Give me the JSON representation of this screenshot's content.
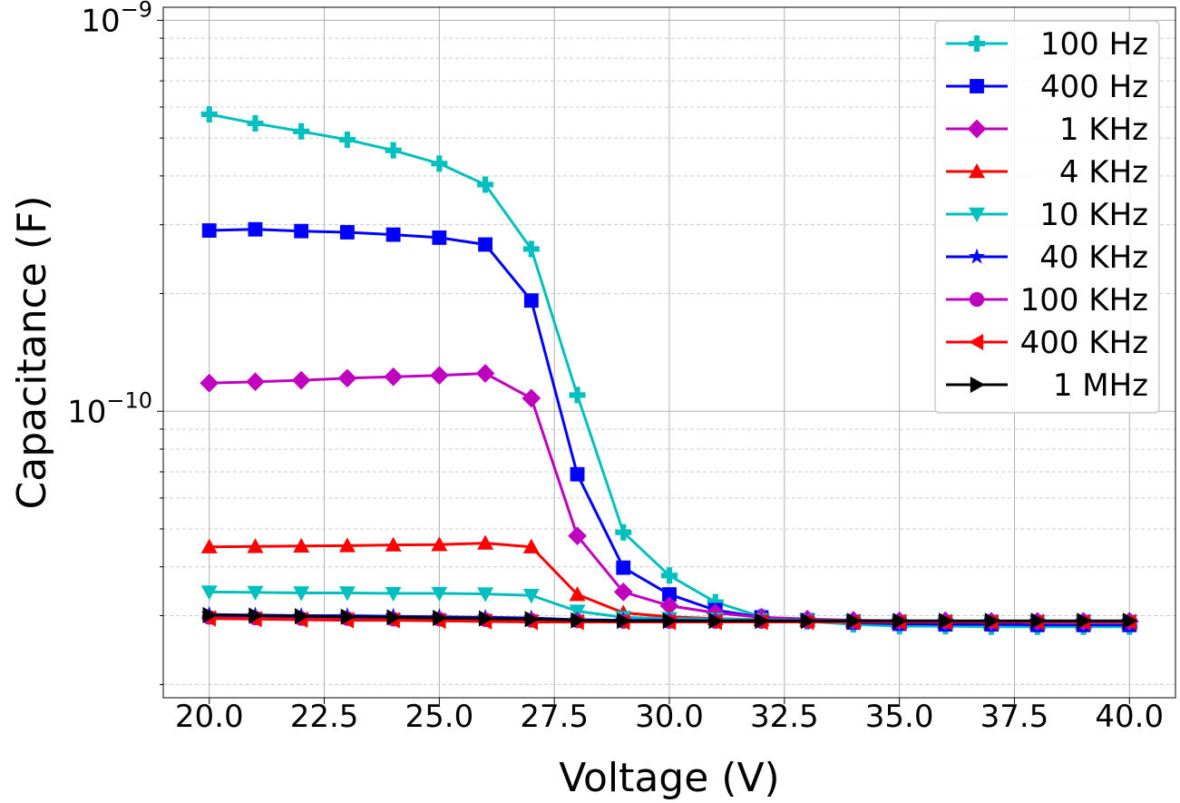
{
  "chart_data": {
    "type": "line",
    "title": "",
    "xlabel": "Voltage (V)",
    "ylabel": "Capacitance (F)",
    "yscale": "log",
    "xlim": [
      19.0,
      41.0
    ],
    "ylim": [
      1.85e-11,
      1.08e-09
    ],
    "x_ticks": [
      20.0,
      22.5,
      25.0,
      27.5,
      30.0,
      32.5,
      35.0,
      37.5,
      40.0
    ],
    "x_tick_labels": [
      "20.0",
      "22.5",
      "25.0",
      "27.5",
      "30.0",
      "32.5",
      "35.0",
      "37.5",
      "40.0"
    ],
    "y_major_ticks": [
      {
        "value": 1e-10,
        "base": "10",
        "exponent": "−10"
      },
      {
        "value": 1e-09,
        "base": "10",
        "exponent": "−9"
      }
    ],
    "grid": "major solid, minor dashed",
    "legend_position": "top-right",
    "x": [
      20,
      21,
      22,
      23,
      24,
      25,
      26,
      27,
      28,
      29,
      30,
      31,
      32,
      33,
      34,
      35,
      36,
      37,
      38,
      39,
      40
    ],
    "series": [
      {
        "name": "100 Hz",
        "color": "#00bfbf",
        "marker": "plus",
        "values": [
          5.75e-10,
          5.45e-10,
          5.2e-10,
          4.95e-10,
          4.65e-10,
          4.3e-10,
          3.8e-10,
          2.6e-10,
          1.1e-10,
          4.9e-11,
          3.8e-11,
          3.25e-11,
          2.98e-11,
          2.9e-11,
          2.85e-11,
          2.82e-11,
          2.82e-11,
          2.81e-11,
          2.81e-11,
          2.81e-11,
          2.81e-11
        ]
      },
      {
        "name": "400 Hz",
        "color": "#0000ff",
        "marker": "square",
        "values": [
          2.9e-10,
          2.92e-10,
          2.89e-10,
          2.87e-10,
          2.83e-10,
          2.78e-10,
          2.67e-10,
          1.92e-10,
          6.9e-11,
          3.98e-11,
          3.4e-11,
          3.1e-11,
          2.97e-11,
          2.92e-11,
          2.88e-11,
          2.86e-11,
          2.85e-11,
          2.85e-11,
          2.84e-11,
          2.84e-11,
          2.84e-11
        ]
      },
      {
        "name": "1 KHz",
        "color": "#bf00bf",
        "marker": "diamond",
        "values": [
          1.18e-10,
          1.19e-10,
          1.2e-10,
          1.215e-10,
          1.225e-10,
          1.235e-10,
          1.25e-10,
          1.08e-10,
          4.8e-11,
          3.45e-11,
          3.18e-11,
          3.05e-11,
          2.97e-11,
          2.94e-11,
          2.92e-11,
          2.91e-11,
          2.91e-11,
          2.9e-11,
          2.9e-11,
          2.9e-11,
          2.9e-11
        ]
      },
      {
        "name": "4 KHz",
        "color": "#ff0000",
        "marker": "triangle-up",
        "values": [
          4.5e-11,
          4.51e-11,
          4.52e-11,
          4.53e-11,
          4.55e-11,
          4.56e-11,
          4.6e-11,
          4.5e-11,
          3.4e-11,
          3.05e-11,
          2.98e-11,
          2.95e-11,
          2.93e-11,
          2.92e-11,
          2.91e-11,
          2.9e-11,
          2.9e-11,
          2.9e-11,
          2.9e-11,
          2.9e-11,
          2.9e-11
        ]
      },
      {
        "name": "10 KHz",
        "color": "#00bfbf",
        "marker": "triangle-down",
        "values": [
          3.45e-11,
          3.44e-11,
          3.43e-11,
          3.43e-11,
          3.42e-11,
          3.42e-11,
          3.41e-11,
          3.38e-11,
          3.08e-11,
          2.97e-11,
          2.95e-11,
          2.94e-11,
          2.93e-11,
          2.92e-11,
          2.91e-11,
          2.9e-11,
          2.9e-11,
          2.9e-11,
          2.9e-11,
          2.9e-11,
          2.9e-11
        ]
      },
      {
        "name": "40 KHz",
        "color": "#0000ff",
        "marker": "star",
        "values": [
          3.02e-11,
          3.01e-11,
          3e-11,
          3e-11,
          2.99e-11,
          2.98e-11,
          2.97e-11,
          2.96e-11,
          2.93e-11,
          2.92e-11,
          2.92e-11,
          2.91e-11,
          2.91e-11,
          2.91e-11,
          2.9e-11,
          2.9e-11,
          2.9e-11,
          2.9e-11,
          2.9e-11,
          2.9e-11,
          2.9e-11
        ]
      },
      {
        "name": "100 KHz",
        "color": "#bf00bf",
        "marker": "circle",
        "values": [
          2.97e-11,
          2.96e-11,
          2.95e-11,
          2.95e-11,
          2.94e-11,
          2.94e-11,
          2.93e-11,
          2.92e-11,
          2.91e-11,
          2.9e-11,
          2.9e-11,
          2.9e-11,
          2.9e-11,
          2.9e-11,
          2.9e-11,
          2.9e-11,
          2.9e-11,
          2.9e-11,
          2.9e-11,
          2.9e-11,
          2.9e-11
        ]
      },
      {
        "name": "400 KHz",
        "color": "#ff0000",
        "marker": "triangle-left",
        "values": [
          2.95e-11,
          2.94e-11,
          2.93e-11,
          2.92e-11,
          2.92e-11,
          2.91e-11,
          2.9e-11,
          2.89e-11,
          2.89e-11,
          2.89e-11,
          2.89e-11,
          2.89e-11,
          2.89e-11,
          2.89e-11,
          2.89e-11,
          2.89e-11,
          2.89e-11,
          2.89e-11,
          2.89e-11,
          2.89e-11,
          2.89e-11
        ]
      },
      {
        "name": "1 MHz",
        "color": "#000000",
        "marker": "triangle-right",
        "values": [
          3.01e-11,
          3e-11,
          2.99e-11,
          2.98e-11,
          2.97e-11,
          2.96e-11,
          2.95e-11,
          2.94e-11,
          2.92e-11,
          2.91e-11,
          2.91e-11,
          2.91e-11,
          2.91e-11,
          2.91e-11,
          2.91e-11,
          2.91e-11,
          2.91e-11,
          2.91e-11,
          2.91e-11,
          2.91e-11,
          2.91e-11
        ]
      }
    ]
  }
}
